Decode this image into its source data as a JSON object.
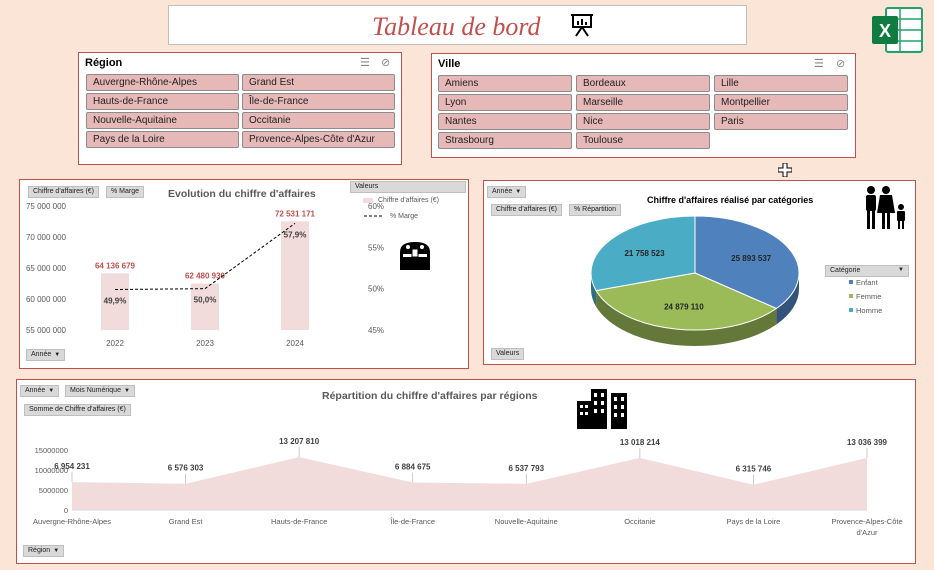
{
  "header": {
    "title": "Tableau de bord",
    "presentation_icon": "presentation-board-icon",
    "app_icon": "excel-icon"
  },
  "slicers": {
    "region": {
      "title": "Région",
      "items": [
        "Auvergne-Rhône-Alpes",
        "Grand Est",
        "Hauts-de-France",
        "Île-de-France",
        "Nouvelle-Aquitaine",
        "Occitanie",
        "Pays de la Loire",
        "Provence-Alpes-Côte d'Azur"
      ]
    },
    "ville": {
      "title": "Ville",
      "items": [
        "Amiens",
        "Bordeaux",
        "Lille",
        "Lyon",
        "Marseille",
        "Montpellier",
        "Nantes",
        "Nice",
        "Paris",
        "Strasbourg",
        "Toulouse"
      ]
    }
  },
  "evolution": {
    "title": "Evolution du chiffre d'affaires",
    "buttons": {
      "field1": "Chiffre d'affaires (€)",
      "field2": "% Marge",
      "annee": "Année"
    },
    "legend": {
      "header": "Valeurs",
      "ca": "Chiffre d'affaires (€)",
      "marge": "% Marge"
    },
    "icon": "treasure-chest-icon"
  },
  "categories": {
    "title": "Chiffre d'affaires réalisé par catégories",
    "buttons": {
      "annee": "Année",
      "field1": "Chiffre d'affaires (€)",
      "field2": "% Répartition",
      "valeurs": "Valeurs"
    },
    "legend_header": "Catégorie",
    "icon": "family-icon"
  },
  "regions_chart": {
    "title": "Répartition du chiffre d'affaires par régions",
    "buttons": {
      "annee": "Année",
      "mois": "Mois Numérique",
      "somme": "Somme de Chiffre d'affaires (€)",
      "region": "Région"
    },
    "icon": "buildings-icon"
  },
  "chart_data": [
    {
      "type": "bar",
      "title": "Evolution du chiffre d'affaires",
      "categories": [
        "2022",
        "2023",
        "2024"
      ],
      "series": [
        {
          "name": "Chiffre d'affaires (€)",
          "values": [
            64136679,
            62480930,
            72531171
          ],
          "labels": [
            "64 136 679",
            "62 480 930",
            "72 531 171"
          ]
        },
        {
          "name": "% Marge",
          "type": "line",
          "values": [
            0.499,
            0.5,
            0.579
          ],
          "labels": [
            "49,9%",
            "50,0%",
            "57,9%"
          ]
        }
      ],
      "ylim": [
        55000000,
        75000000
      ],
      "yticks": [
        "55 000 000",
        "60 000 000",
        "65 000 000",
        "70 000 000",
        "75 000 000"
      ],
      "y2lim": [
        0.45,
        0.6
      ],
      "y2ticks": [
        "45%",
        "50%",
        "55%",
        "60%"
      ],
      "colors": {
        "bar": "#f2dcdb",
        "bar_label": "#c0504d"
      }
    },
    {
      "type": "pie",
      "title": "Chiffre d'affaires réalisé par catégories",
      "categories": [
        "Enfant",
        "Femme",
        "Homme"
      ],
      "values": [
        25893537,
        24879110,
        21758523
      ],
      "labels": [
        "25 893 537",
        "24 879 110",
        "21 758 523"
      ],
      "colors": [
        "#4f81bd",
        "#9bbb59",
        "#4bacc6"
      ]
    },
    {
      "type": "area",
      "title": "Répartition du chiffre d'affaires par régions",
      "categories": [
        "Auvergne-Rhône-Alpes",
        "Grand Est",
        "Hauts-de-France",
        "Île-de-France",
        "Nouvelle-Aquitaine",
        "Occitanie",
        "Pays de la Loire",
        "Provence-Alpes-Côte d'Azur"
      ],
      "values": [
        6954231,
        6576303,
        13207810,
        6884675,
        6537793,
        13018214,
        6315746,
        13036399
      ],
      "labels": [
        "6 954 231",
        "6 576 303",
        "13 207 810",
        "6 884 675",
        "6 537 793",
        "13 018 214",
        "6 315 746",
        "13 036 399"
      ],
      "ylim": [
        0,
        15000000
      ],
      "yticks": [
        "0",
        "5000000",
        "10000000",
        "15000000"
      ],
      "colors": {
        "area": "#f2dcdb"
      }
    }
  ]
}
